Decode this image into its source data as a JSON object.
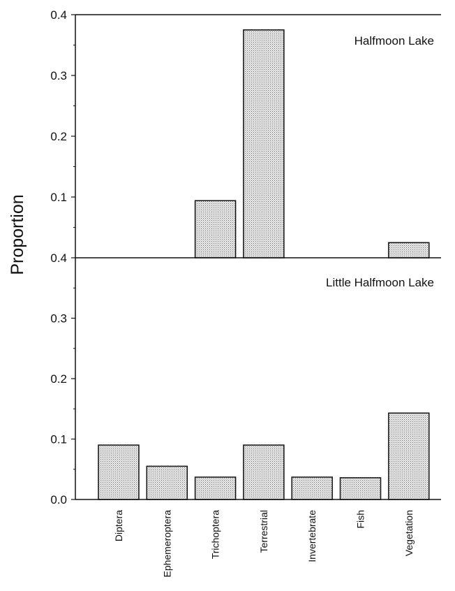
{
  "chart_data": {
    "type": "bar",
    "ylabel": "Proportion",
    "categories": [
      "Diptera",
      "Ephemeroptera",
      "Trichoptera",
      "Terrestrial",
      "Invertebrate",
      "Fish",
      "Vegetation"
    ],
    "panels": [
      {
        "label": "Halfmoon Lake",
        "ylim": [
          0,
          0.4
        ],
        "y_ticks": [
          "0.4",
          "0.3",
          "0.2",
          "0.1"
        ],
        "values": [
          0,
          0,
          0.094,
          0.375,
          0,
          0,
          0.025
        ]
      },
      {
        "label": "Little Halfmoon Lake",
        "ylim": [
          0,
          0.4
        ],
        "y_ticks": [
          "0.4",
          "0.3",
          "0.2",
          "0.1",
          "0.0"
        ],
        "values": [
          0.09,
          0.055,
          0.037,
          0.09,
          0.037,
          0.036,
          0.143
        ]
      }
    ],
    "bar_color": "#d4d4d4",
    "grid": false
  }
}
